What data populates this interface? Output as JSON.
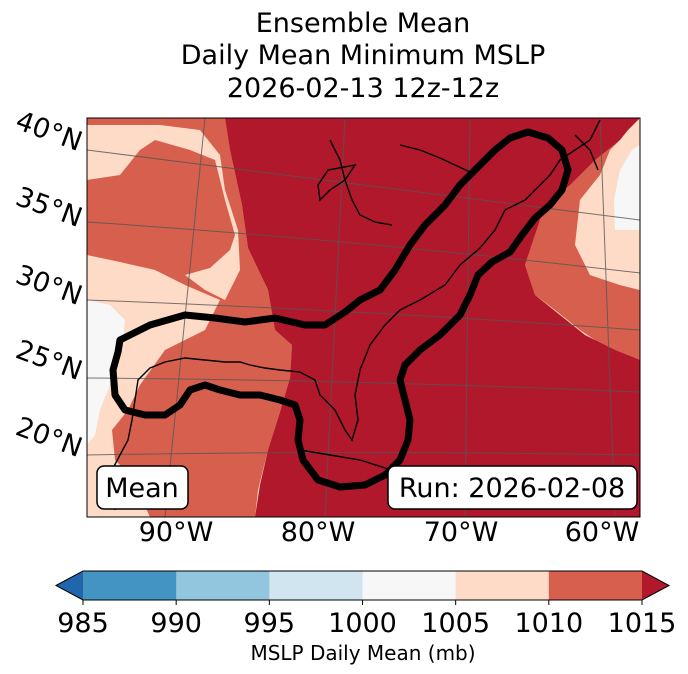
{
  "chart_data": {
    "type": "heatmap",
    "title_lines": [
      "Ensemble Mean",
      "Daily Mean Minimum MSLP",
      "2026-02-13 12z-12z"
    ],
    "lat_ticks": [
      "40°N",
      "35°N",
      "30°N",
      "25°N",
      "20°N"
    ],
    "lon_ticks": [
      "90°W",
      "80°W",
      "70°W",
      "60°W"
    ],
    "lat_range": [
      16,
      41
    ],
    "lon_range": [
      -97,
      -59
    ],
    "mean_label": "Mean",
    "run_label": "Run: 2026-02-08",
    "colorbar": {
      "label": "MSLP Daily Mean (mb)",
      "ticks": [
        "985",
        "990",
        "995",
        "1000",
        "1005",
        "1010",
        "1015"
      ],
      "levels": [
        985,
        990,
        995,
        1000,
        1005,
        1010,
        1015
      ],
      "colors": [
        "#2166ac",
        "#4393c3",
        "#92c5de",
        "#d1e5f0",
        "#f7f7f7",
        "#fddbc7",
        "#d6604d",
        "#b2182b"
      ],
      "extend": "both"
    },
    "contour_description": "Thick black contour outlining the low pressure trough along the US East Coast and Gulf of Mexico"
  }
}
